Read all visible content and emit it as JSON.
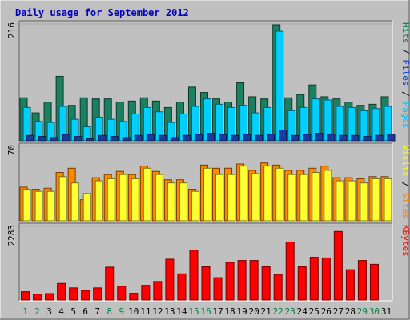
{
  "chart_data": {
    "type": "bar",
    "title": "Daily usage for September 2012",
    "categories": [
      "1",
      "2",
      "3",
      "4",
      "5",
      "6",
      "7",
      "8",
      "9",
      "10",
      "11",
      "12",
      "13",
      "14",
      "15",
      "16",
      "17",
      "18",
      "19",
      "20",
      "21",
      "22",
      "23",
      "24",
      "25",
      "26",
      "27",
      "28",
      "29",
      "30",
      "31"
    ],
    "weekend_days": [
      "1",
      "2",
      "8",
      "9",
      "15",
      "16",
      "22",
      "23",
      "29",
      "30"
    ],
    "panels": [
      {
        "max_label": "216",
        "ylim": [
          0,
          216
        ],
        "legend": [
          {
            "text": "Pages",
            "color": "#00c0ff"
          },
          {
            "text": "Files",
            "color": "#0040e0"
          },
          {
            "text": "Hits",
            "color": "#008040"
          }
        ],
        "series": [
          {
            "name": "Hits",
            "color": "#1a8060",
            "values": [
              80,
              52,
              72,
              120,
              66,
              80,
              78,
              78,
              72,
              74,
              80,
              74,
              62,
              72,
              100,
              90,
              78,
              72,
              108,
              82,
              78,
              216,
              80,
              86,
              104,
              82,
              78,
              72,
              66,
              68,
              82
            ]
          },
          {
            "name": "Files",
            "color": "#00cfff",
            "values": [
              62,
              36,
              34,
              64,
              40,
              26,
              44,
              40,
              36,
              50,
              62,
              54,
              34,
              50,
              64,
              78,
              68,
              62,
              66,
              52,
              62,
              204,
              56,
              62,
              78,
              76,
              64,
              62,
              56,
              60,
              64
            ]
          },
          {
            "name": "Pages",
            "color": "#1a3aa0",
            "values": [
              10,
              8,
              6,
              12,
              8,
              4,
              10,
              8,
              6,
              10,
              12,
              10,
              6,
              10,
              12,
              14,
              12,
              10,
              12,
              10,
              12,
              20,
              10,
              12,
              14,
              12,
              10,
              10,
              8,
              10,
              12
            ]
          }
        ]
      },
      {
        "max_label": "70",
        "ylim": [
          0,
          70
        ],
        "legend": [
          {
            "text": "Sites",
            "color": "#ff8000"
          },
          {
            "text": "Visits",
            "color": "#ffff00"
          }
        ],
        "series": [
          {
            "name": "Visits",
            "color": "#ff8800",
            "values": [
              32,
              30,
              31,
              46,
              50,
              20,
              41,
              44,
              47,
              44,
              52,
              47,
              39,
              39,
              30,
              53,
              50,
              50,
              54,
              48,
              55,
              53,
              48,
              48,
              50,
              52,
              41,
              41,
              40,
              42,
              42
            ]
          },
          {
            "name": "Sites",
            "color": "#ffff33",
            "values": [
              30,
              28,
              28,
              42,
              36,
              26,
              38,
              40,
              44,
              40,
              50,
              44,
              36,
              36,
              28,
              50,
              44,
              44,
              52,
              45,
              52,
              50,
              44,
              44,
              46,
              48,
              38,
              38,
              36,
              40,
              40
            ]
          }
        ]
      },
      {
        "max_label": "2283",
        "ylim": [
          0,
          2283
        ],
        "legend": [
          {
            "text": "KBytes",
            "color": "#ff0000"
          }
        ],
        "series": [
          {
            "name": "KBytes",
            "color": "#ff0000",
            "values": [
              260,
              180,
              200,
              520,
              380,
              300,
              380,
              1030,
              430,
              210,
              460,
              580,
              1280,
              820,
              1560,
              1040,
              700,
              1180,
              1240,
              1240,
              1040,
              800,
              1820,
              1040,
              1340,
              1320,
              2150,
              950,
              1240,
              1120,
              0
            ]
          }
        ]
      }
    ]
  }
}
